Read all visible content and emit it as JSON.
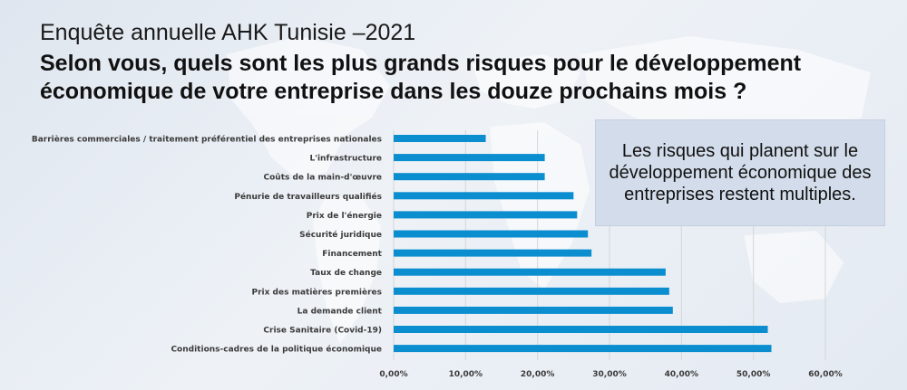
{
  "header": {
    "subtitle": "Enquête annuelle AHK Tunisie –2021",
    "title": "Selon vous, quels sont les plus grands risques pour le développement économique de votre entreprise dans les douze prochains mois ?"
  },
  "callout": {
    "text": "Les risques qui planent sur le développement économique des entreprises restent multiples."
  },
  "colors": {
    "bar": "#0b8ed0",
    "grid": "#d5d5d5",
    "label": "#3a3a3a"
  },
  "chart_data": {
    "type": "bar",
    "orientation": "horizontal",
    "categories": [
      "Barrières commerciales / traitement préférentiel des entreprises nationales",
      "L'infrastructure",
      "Coûts de la main-d'œuvre",
      "Pénurie de travailleurs qualifiés",
      "Prix de l'énergie",
      "Sécurité juridique",
      "Financement",
      "Taux de change",
      "Prix des matières premières",
      "La demande client",
      "Crise Sanitaire (Covid-19)",
      "Conditions-cadres de la politique économique"
    ],
    "values": [
      12.8,
      21.0,
      21.0,
      25.0,
      25.5,
      27.0,
      27.5,
      37.8,
      38.3,
      38.8,
      52.0,
      52.5
    ],
    "xlim": [
      0,
      60
    ],
    "xticks": [
      "0,00%",
      "10,00%",
      "20,00%",
      "30,00%",
      "40,00%",
      "50,00%",
      "60,00%"
    ],
    "grid": true,
    "title": "",
    "xlabel": "",
    "ylabel": ""
  }
}
